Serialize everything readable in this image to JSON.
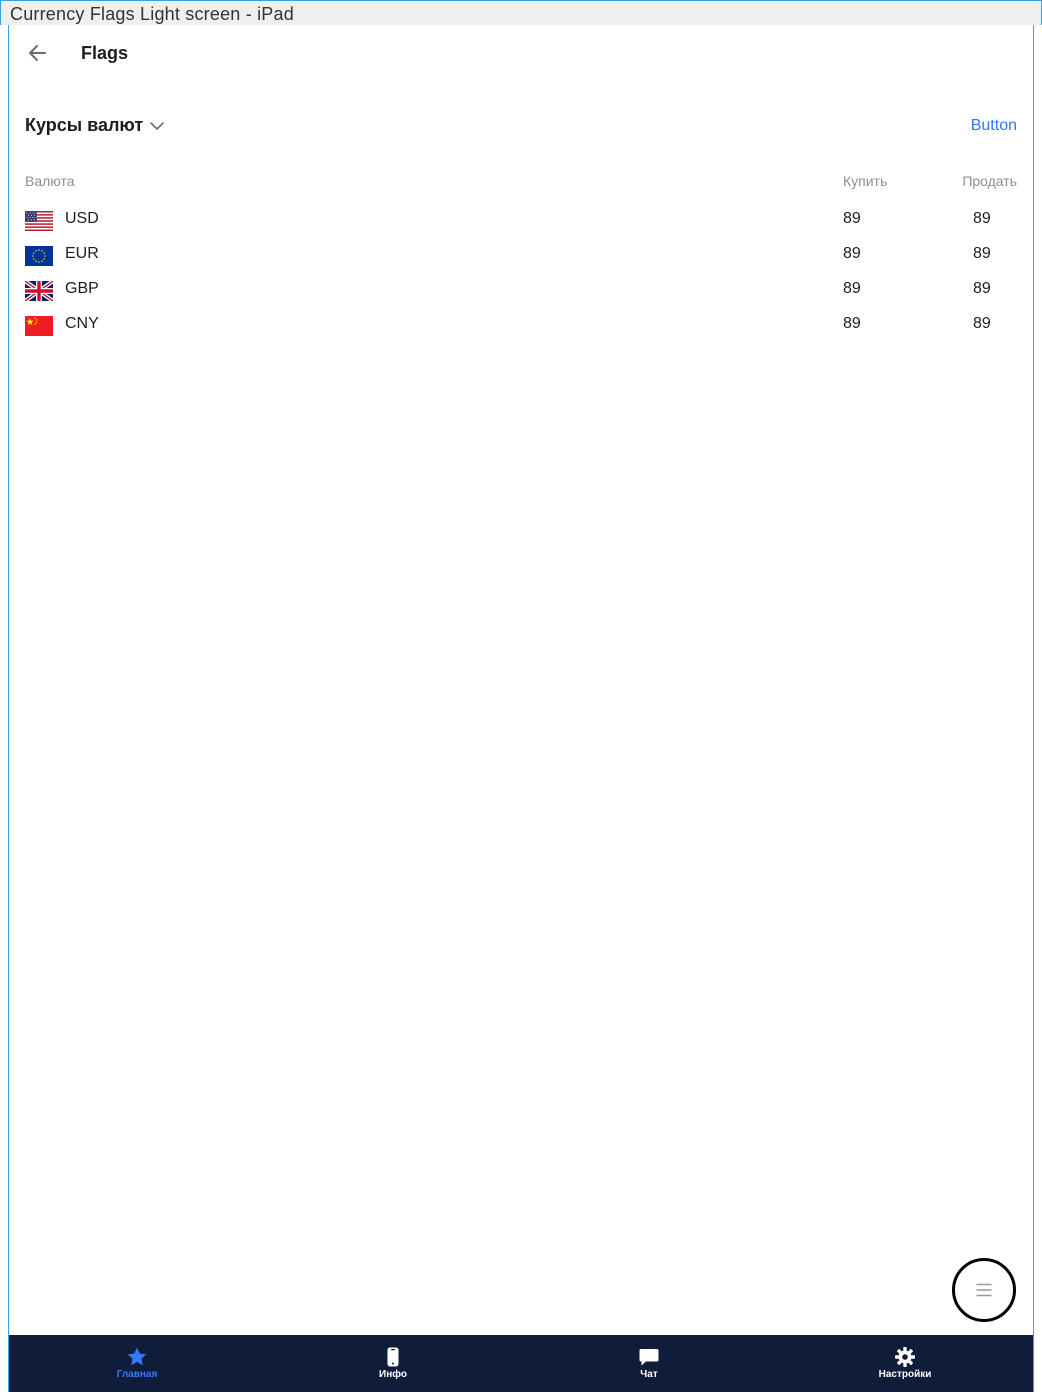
{
  "frame": {
    "title": "Currency Flags Light screen - iPad"
  },
  "header": {
    "title": "Flags"
  },
  "section": {
    "title": "Курсы валют",
    "button_label": "Button"
  },
  "table": {
    "columns": {
      "currency": "Валюта",
      "buy": "Купить",
      "sell": "Продать"
    },
    "rows": [
      {
        "flag": "usa-flag-icon",
        "code": "USD",
        "buy": "89",
        "sell": "89"
      },
      {
        "flag": "eu-flag-icon",
        "code": "EUR",
        "buy": "89",
        "sell": "89"
      },
      {
        "flag": "uk-flag-icon",
        "code": "GBP",
        "buy": "89",
        "sell": "89"
      },
      {
        "flag": "china-flag-icon",
        "code": "CNY",
        "buy": "89",
        "sell": "89"
      }
    ]
  },
  "fab": {
    "icon": "menu-icon"
  },
  "tabbar": {
    "items": [
      {
        "label": "Главная",
        "icon": "star-icon",
        "active": true
      },
      {
        "label": "Инфо",
        "icon": "phone-icon",
        "active": false
      },
      {
        "label": "Чат",
        "icon": "chat-bubble-icon",
        "active": false
      },
      {
        "label": "Настройки",
        "icon": "gear-icon",
        "active": false
      }
    ]
  },
  "colors": {
    "accent": "#3478f6",
    "tabbar_bg": "#0f1d3a",
    "muted": "#8e8e93"
  }
}
